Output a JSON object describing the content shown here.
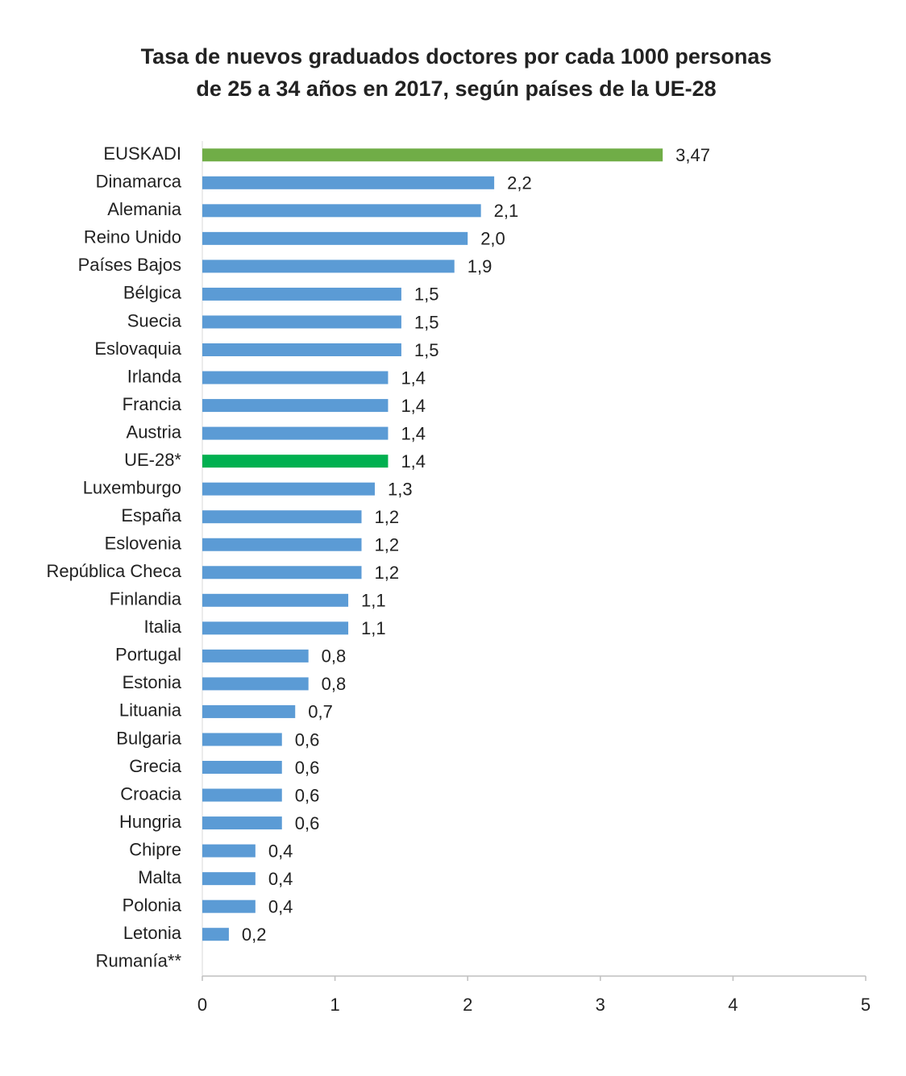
{
  "chart_data": {
    "type": "bar",
    "orientation": "horizontal",
    "title": [
      "Tasa de nuevos graduados doctores por cada 1000 personas",
      "de 25 a 34 años en 2017, según países de la UE-28"
    ],
    "categories": [
      "EUSKADI",
      "Dinamarca",
      "Alemania",
      "Reino Unido",
      "Países Bajos",
      "Bélgica",
      "Suecia",
      "Eslovaquia",
      "Irlanda",
      "Francia",
      "Austria",
      "UE-28*",
      "Luxemburgo",
      "España",
      "Eslovenia",
      "República Checa",
      "Finlandia",
      "Italia",
      "Portugal",
      "Estonia",
      "Lituania",
      "Bulgaria",
      "Grecia",
      "Croacia",
      "Hungria",
      "Chipre",
      "Malta",
      "Polonia",
      "Letonia",
      "Rumanía**"
    ],
    "values": [
      3.47,
      2.2,
      2.1,
      2.0,
      1.9,
      1.5,
      1.5,
      1.5,
      1.4,
      1.4,
      1.4,
      1.4,
      1.3,
      1.2,
      1.2,
      1.2,
      1.1,
      1.1,
      0.8,
      0.8,
      0.7,
      0.6,
      0.6,
      0.6,
      0.6,
      0.4,
      0.4,
      0.4,
      0.2,
      null
    ],
    "value_labels": [
      "3,47",
      "2,2",
      "2,1",
      "2,0",
      "1,9",
      "1,5",
      "1,5",
      "1,5",
      "1,4",
      "1,4",
      "1,4",
      "1,4",
      "1,3",
      "1,2",
      "1,2",
      "1,2",
      "1,1",
      "1,1",
      "0,8",
      "0,8",
      "0,7",
      "0,6",
      "0,6",
      "0,6",
      "0,6",
      "0,4",
      "0,4",
      "0,4",
      "0,2",
      null
    ],
    "colors": [
      "#70ad47",
      "#5b9bd5",
      "#5b9bd5",
      "#5b9bd5",
      "#5b9bd5",
      "#5b9bd5",
      "#5b9bd5",
      "#5b9bd5",
      "#5b9bd5",
      "#5b9bd5",
      "#5b9bd5",
      "#00b050",
      "#5b9bd5",
      "#5b9bd5",
      "#5b9bd5",
      "#5b9bd5",
      "#5b9bd5",
      "#5b9bd5",
      "#5b9bd5",
      "#5b9bd5",
      "#5b9bd5",
      "#5b9bd5",
      "#5b9bd5",
      "#5b9bd5",
      "#5b9bd5",
      "#5b9bd5",
      "#5b9bd5",
      "#5b9bd5",
      "#5b9bd5",
      "#5b9bd5"
    ],
    "xlim": [
      0,
      5
    ],
    "xticks": [
      0,
      1,
      2,
      3,
      4,
      5
    ],
    "grid": false
  }
}
